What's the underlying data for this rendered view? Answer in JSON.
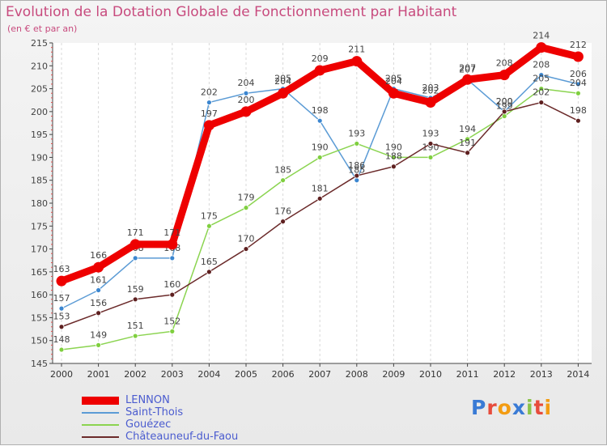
{
  "chart_data": {
    "type": "line",
    "title": "Evolution de la Dotation Globale de Fonctionnement par Habitant",
    "subtitle": "(en € et par an)",
    "xlabel": "",
    "ylabel": "",
    "ylim": [
      145,
      215
    ],
    "y_ticks": [
      145,
      150,
      155,
      160,
      165,
      170,
      175,
      180,
      185,
      190,
      195,
      200,
      205,
      210,
      215
    ],
    "x": [
      2000,
      2001,
      2002,
      2003,
      2004,
      2005,
      2006,
      2007,
      2008,
      2009,
      2010,
      2011,
      2012,
      2013,
      2014
    ],
    "grid": "dashed vertical",
    "series": [
      {
        "name": "Saint-Thois",
        "color": "#5b9bd5",
        "marker": "#3b86d0",
        "values": [
          157,
          161,
          168,
          168,
          202,
          204,
          205,
          198,
          185,
          205,
          203,
          207,
          200,
          208,
          206
        ]
      },
      {
        "name": "Gouézec",
        "color": "#8bd450",
        "marker": "#7fcf3f",
        "values": [
          148,
          149,
          151,
          152,
          175,
          179,
          185,
          190,
          193,
          190,
          190,
          194,
          199,
          205,
          204
        ]
      },
      {
        "name": "Châteauneuf-du-Faou",
        "color": "#6b2a2a",
        "marker": "#5e2020",
        "values": [
          153,
          156,
          159,
          160,
          165,
          170,
          176,
          181,
          186,
          188,
          193,
          191,
          200,
          202,
          198
        ]
      },
      {
        "name": "LENNON",
        "color": "#ee0000",
        "marker": "#ee0000",
        "values": [
          163,
          166,
          171,
          171,
          197,
          200,
          204,
          209,
          211,
          204,
          202,
          207,
          208,
          214,
          212
        ]
      }
    ],
    "legend_order": [
      "LENNON",
      "Saint-Thois",
      "Gouézec",
      "Châteauneuf-du-Faou"
    ],
    "legend_position": "bottom-left"
  },
  "logo": {
    "letters": [
      "P",
      "r",
      "o",
      "x",
      "i",
      "t",
      "i"
    ]
  }
}
